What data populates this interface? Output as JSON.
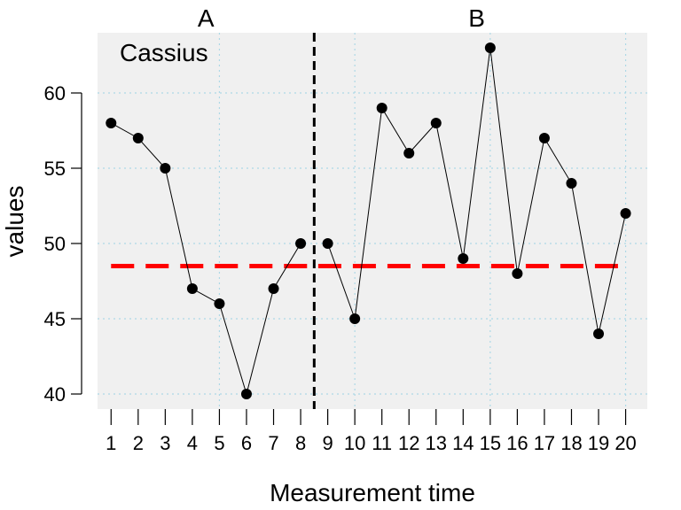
{
  "chart_data": {
    "type": "line",
    "case_label": "Cassius",
    "xlabel": "Measurement time",
    "ylabel": "values",
    "ylim": [
      39,
      64
    ],
    "xlim": [
      0.5,
      20.8
    ],
    "y_ticks": [
      40,
      45,
      50,
      55,
      60
    ],
    "x_ticks": [
      1,
      2,
      3,
      4,
      5,
      6,
      7,
      8,
      9,
      10,
      11,
      12,
      13,
      14,
      15,
      16,
      17,
      18,
      19,
      20
    ],
    "grid": true,
    "phase_boundary": 8.5,
    "phases": [
      {
        "label": "A",
        "x": [
          1,
          2,
          3,
          4,
          5,
          6,
          7,
          8
        ],
        "values": [
          58,
          57,
          55,
          47,
          46,
          40,
          47,
          50
        ]
      },
      {
        "label": "B",
        "x": [
          9,
          10,
          11,
          12,
          13,
          14,
          15,
          16,
          17,
          18,
          19,
          20
        ],
        "values": [
          50,
          45,
          59,
          56,
          58,
          49,
          63,
          48,
          57,
          54,
          44,
          52
        ]
      }
    ],
    "reference_line": {
      "value": 48.5,
      "from": 1,
      "to": 20
    },
    "colors": {
      "panel": "#f0f0f0",
      "grid": "#add8e6",
      "reference": "#ff0000",
      "points": "#000000",
      "divider": "#000000"
    }
  }
}
